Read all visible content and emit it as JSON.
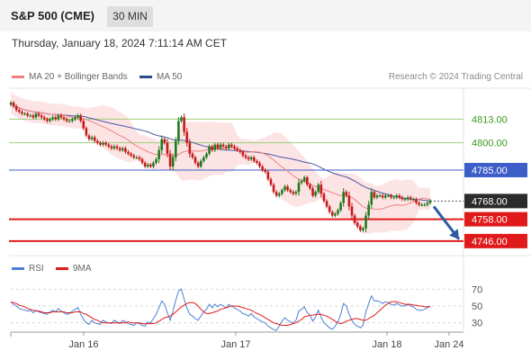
{
  "header": {
    "instrument": "S&P 500 (CME)",
    "timeframe": "30 MIN",
    "datetime": "Thursday, January 18, 2024 7:11:14 AM CET",
    "source": "Research © 2024 Trading Central"
  },
  "legend": {
    "ma20_label": "MA 20 + Bollinger Bands",
    "ma50_label": "MA 50",
    "rsi_label": "RSI",
    "ma9_label": "9MA"
  },
  "colors": {
    "bullish": "#1f7a1f",
    "bearish": "#c41a1a",
    "ma20": "#f08080",
    "bollinger_fill": "#fde1e1",
    "ma50": "#4a56a6",
    "level_green": "#9bd07a",
    "level_blue": "#3d5dc8",
    "level_red": "#e01a1a",
    "current_price": "#2b2b2b",
    "forecast_arrow": "#2b5ca0"
  },
  "chart_data": [
    {
      "type": "candlestick",
      "title": "S&P 500 (CME) 30 MIN",
      "x_ticks": [
        "Jan 16",
        "Jan 17",
        "Jan 18",
        "Jan 24"
      ],
      "y_range": [
        4740,
        4830
      ],
      "current_price": "4768.00",
      "levels": [
        {
          "value": 4813,
          "label": "4813.00",
          "kind": "resistance-green"
        },
        {
          "value": 4800,
          "label": "4800.00",
          "kind": "resistance-green"
        },
        {
          "value": 4785,
          "label": "4785.00",
          "kind": "pivot-blue"
        },
        {
          "value": 4758,
          "label": "4758.00",
          "kind": "support-red"
        },
        {
          "value": 4746,
          "label": "4746.00",
          "kind": "support-red"
        }
      ],
      "forecast": {
        "from": 4765,
        "to": 4747,
        "direction": "down"
      },
      "close": [
        4822,
        4820,
        4818,
        4817,
        4816,
        4816,
        4815,
        4815,
        4814,
        4816,
        4815,
        4814,
        4813,
        4812,
        4813,
        4814,
        4813,
        4815,
        4814,
        4813,
        4812,
        4812,
        4813,
        4814,
        4815,
        4812,
        4808,
        4804,
        4802,
        4803,
        4801,
        4800,
        4799,
        4800,
        4799,
        4798,
        4797,
        4798,
        4797,
        4796,
        4797,
        4795,
        4794,
        4793,
        4792,
        4792,
        4791,
        4789,
        4787,
        4788,
        4787,
        4789,
        4791,
        4796,
        4802,
        4800,
        4794,
        4787,
        4792,
        4801,
        4812,
        4814,
        4806,
        4800,
        4794,
        4792,
        4789,
        4787,
        4790,
        4792,
        4794,
        4798,
        4796,
        4799,
        4797,
        4799,
        4798,
        4797,
        4799,
        4798,
        4797,
        4796,
        4795,
        4793,
        4792,
        4791,
        4792,
        4790,
        4789,
        4787,
        4785,
        4784,
        4780,
        4777,
        4773,
        4771,
        4772,
        4774,
        4776,
        4774,
        4773,
        4772,
        4773,
        4778,
        4779,
        4781,
        4777,
        4775,
        4771,
        4773,
        4777,
        4772,
        4768,
        4765,
        4762,
        4760,
        4761,
        4763,
        4767,
        4773,
        4771,
        4765,
        4760,
        4756,
        4754,
        4752,
        4753,
        4760,
        4766,
        4773,
        4770,
        4771,
        4771,
        4770,
        4771,
        4771,
        4770,
        4770,
        4771,
        4770,
        4769,
        4769,
        4770,
        4769,
        4769,
        4767,
        4766,
        4766,
        4766,
        4767,
        4768
      ]
    },
    {
      "type": "line",
      "title": "RSI",
      "y_ticks": [
        70,
        50,
        30
      ],
      "y_range": [
        20,
        80
      ],
      "series": [
        {
          "name": "RSI",
          "values": [
            55,
            52,
            50,
            47,
            46,
            45,
            44,
            45,
            42,
            45,
            43,
            42,
            41,
            40,
            43,
            45,
            43,
            47,
            44,
            42,
            40,
            41,
            44,
            46,
            48,
            40,
            34,
            30,
            28,
            33,
            30,
            29,
            28,
            33,
            31,
            30,
            29,
            33,
            31,
            29,
            33,
            31,
            29,
            28,
            27,
            30,
            29,
            27,
            26,
            31,
            30,
            35,
            40,
            48,
            56,
            52,
            42,
            33,
            44,
            57,
            68,
            70,
            58,
            48,
            40,
            38,
            35,
            33,
            38,
            43,
            46,
            52,
            48,
            52,
            49,
            52,
            50,
            48,
            52,
            50,
            48,
            46,
            44,
            41,
            40,
            38,
            41,
            37,
            35,
            33,
            31,
            30,
            26,
            24,
            22,
            21,
            26,
            32,
            36,
            33,
            31,
            30,
            33,
            44,
            46,
            49,
            42,
            39,
            32,
            37,
            45,
            37,
            30,
            27,
            24,
            22,
            26,
            31,
            40,
            53,
            50,
            40,
            33,
            28,
            26,
            24,
            27,
            43,
            53,
            62,
            56,
            56,
            55,
            53,
            55,
            54,
            52,
            51,
            53,
            51,
            50,
            50,
            52,
            50,
            49,
            46,
            45,
            45,
            46,
            48,
            50
          ]
        },
        {
          "name": "9MA",
          "values": [
            55,
            54,
            53,
            51,
            50,
            49,
            47,
            46,
            45,
            44,
            44,
            43,
            42,
            42,
            42,
            43,
            43,
            43,
            43,
            43,
            42,
            42,
            42,
            43,
            43,
            43,
            41,
            40,
            38,
            36,
            34,
            33,
            31,
            30,
            30,
            30,
            30,
            30,
            30,
            30,
            30,
            30,
            31,
            30,
            30,
            30,
            30,
            29,
            29,
            29,
            29,
            29,
            30,
            32,
            34,
            36,
            37,
            38,
            40,
            43,
            46,
            49,
            51,
            53,
            54,
            54,
            53,
            50,
            46,
            43,
            41,
            41,
            42,
            43,
            44,
            46,
            47,
            48,
            49,
            50,
            50,
            50,
            49,
            48,
            47,
            46,
            45,
            43,
            41,
            40,
            38,
            36,
            34,
            32,
            30,
            29,
            28,
            27,
            27,
            27,
            28,
            29,
            30,
            32,
            34,
            37,
            38,
            39,
            39,
            40,
            40,
            40,
            39,
            38,
            36,
            34,
            32,
            30,
            29,
            30,
            32,
            33,
            34,
            35,
            35,
            34,
            33,
            33,
            35,
            37,
            39,
            42,
            45,
            48,
            51,
            53,
            55,
            55,
            55,
            54,
            53,
            52,
            52,
            52,
            51,
            51,
            50,
            50,
            49,
            49,
            49
          ]
        }
      ]
    }
  ]
}
